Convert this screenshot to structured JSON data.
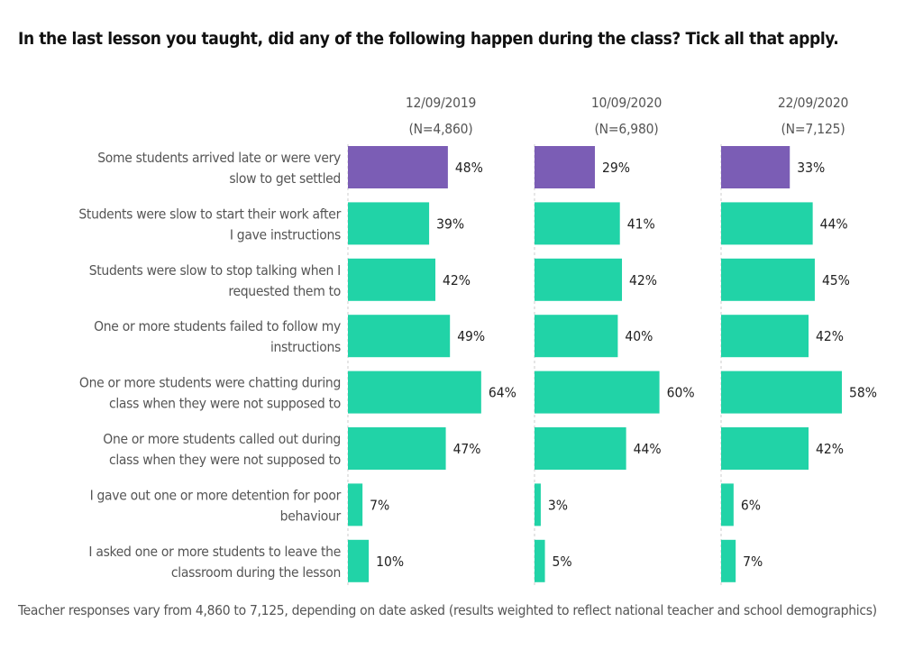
{
  "chart_data": {
    "type": "bar",
    "orientation": "horizontal",
    "title": "In the last lesson you taught, did any of the following happen during the class? Tick all that apply.",
    "note": "Teacher responses vary from  4,860 to 7,125, depending on date asked (results weighted to reflect national teacher and school demographics)",
    "categories": [
      [
        "Some students arrived late or were very",
        "slow to get settled"
      ],
      [
        "Students were slow to start their work after",
        "I gave instructions"
      ],
      [
        "Students were slow to stop talking when I",
        "requested them to"
      ],
      [
        "One or more students failed to follow my",
        "instructions"
      ],
      [
        "One or more students were chatting during",
        "class when they were not supposed to"
      ],
      [
        "One or more students called out during",
        "class when they were not supposed to"
      ],
      [
        "I gave out one or more detention for poor",
        "behaviour"
      ],
      [
        "I asked one or more students to leave the",
        "classroom during the lesson"
      ]
    ],
    "series": [
      {
        "name": "12/09/2019",
        "n": "(N=4,860)",
        "values": [
          48,
          39,
          42,
          49,
          64,
          47,
          7,
          10
        ]
      },
      {
        "name": "10/09/2020",
        "n": "(N=6,980)",
        "values": [
          29,
          41,
          42,
          40,
          60,
          44,
          3,
          5
        ]
      },
      {
        "name": "22/09/2020",
        "n": "(N=7,125)",
        "values": [
          33,
          44,
          45,
          42,
          58,
          42,
          6,
          7
        ]
      }
    ],
    "highlight_index": 0,
    "colors": {
      "highlight": "#7b5db5",
      "default": "#21d3a7"
    },
    "unit": "%",
    "xlim": [
      0,
      100
    ]
  }
}
